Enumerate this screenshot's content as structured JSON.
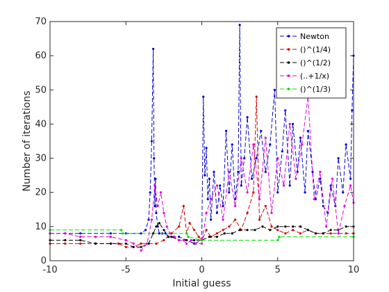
{
  "chart_data": {
    "type": "line",
    "title": "",
    "xlabel": "Initial guess",
    "ylabel": "Number of iterations",
    "xlim": [
      -10,
      10
    ],
    "ylim": [
      0,
      70
    ],
    "xticks": [
      -10,
      -5,
      0,
      5,
      10
    ],
    "yticks": [
      0,
      10,
      20,
      30,
      40,
      50,
      60,
      70
    ],
    "grid": false,
    "legend_position": "top-right",
    "series": [
      {
        "name": "Newton",
        "color": "#0000cc",
        "marker": "dot",
        "x": [
          -10,
          -9,
          -8,
          -6,
          -5,
          -4,
          -3.7,
          -3.5,
          -3.4,
          -3.3,
          -3.2,
          -3.15,
          -3.1,
          -3.05,
          -3,
          -2.9,
          -2.8,
          -2.6,
          -2.4,
          -2.2,
          -2.0,
          -1.5,
          -1.0,
          -0.5,
          0,
          0.1,
          0.2,
          0.3,
          0.4,
          0.5,
          0.6,
          0.8,
          1.0,
          1.2,
          1.4,
          1.6,
          1.8,
          2.0,
          2.2,
          2.4,
          2.5,
          2.6,
          2.8,
          3.0,
          3.3,
          3.6,
          3.9,
          4.2,
          4.5,
          4.8,
          5.0,
          5.3,
          5.5,
          5.8,
          6.0,
          6.3,
          6.5,
          6.8,
          7.0,
          7.3,
          7.5,
          7.8,
          8.0,
          8.3,
          8.5,
          8.8,
          9.0,
          9.3,
          9.5,
          9.8,
          9.9,
          10
        ],
        "y": [
          8,
          8,
          8,
          8,
          8,
          8,
          9,
          12,
          20,
          35,
          62,
          30,
          16,
          24,
          14,
          10,
          8,
          8,
          8,
          7,
          7,
          7,
          6,
          5,
          6,
          48,
          25,
          33,
          18,
          24,
          12,
          26,
          14,
          22,
          16,
          38,
          20,
          34,
          18,
          26,
          69,
          22,
          30,
          42,
          24,
          30,
          38,
          26,
          34,
          50,
          20,
          32,
          44,
          22,
          40,
          26,
          36,
          20,
          38,
          26,
          18,
          24,
          16,
          14,
          22,
          16,
          30,
          20,
          34,
          24,
          44,
          60
        ]
      },
      {
        "name": "()^(1/4)",
        "color": "#cc0000",
        "marker": "dot",
        "x": [
          -10,
          -9,
          -8,
          -7,
          -6,
          -5.5,
          -5,
          -4.5,
          -4,
          -3.5,
          -3,
          -2.5,
          -2,
          -1.5,
          -1.2,
          -1,
          -0.8,
          -0.5,
          -0.2,
          0,
          0.3,
          0.6,
          1.0,
          1.4,
          1.8,
          2.2,
          2.6,
          3.0,
          3.4,
          3.6,
          3.8,
          4.2,
          4.6,
          5.0,
          5.5,
          6.0,
          6.5,
          7.0,
          7.5,
          8.0,
          8.5,
          9.0,
          9.5,
          10
        ],
        "y": [
          5,
          5,
          5,
          5,
          5,
          5,
          4,
          4,
          5,
          5,
          5,
          6,
          8,
          10,
          16,
          8,
          11,
          9,
          7,
          6,
          9,
          7,
          8,
          9,
          10,
          12,
          9,
          14,
          20,
          48,
          12,
          16,
          10,
          9,
          8,
          9,
          8,
          9,
          8,
          8,
          8,
          8,
          8,
          8
        ]
      },
      {
        "name": "()^(1/2)",
        "color": "#000000",
        "marker": "dot",
        "x": [
          -10,
          -9,
          -8,
          -7,
          -6,
          -5,
          -4.5,
          -4,
          -3.5,
          -3.2,
          -3,
          -2.8,
          -2.5,
          -2.2,
          -2,
          -1.5,
          -1,
          -0.5,
          0,
          0.5,
          1.0,
          1.5,
          2.0,
          2.5,
          3.0,
          3.5,
          4.0,
          4.5,
          5.0,
          5.5,
          6.0,
          6.5,
          7.0,
          7.5,
          8.0,
          8.5,
          9.0,
          9.5,
          10
        ],
        "y": [
          6,
          6,
          6,
          5,
          5,
          5,
          4,
          4,
          5,
          8,
          10,
          11,
          9,
          7,
          7,
          6,
          6,
          6,
          6,
          7,
          7,
          8,
          8,
          9,
          9,
          9,
          10,
          9,
          10,
          10,
          10,
          10,
          9,
          8,
          8,
          9,
          9,
          10,
          10
        ]
      },
      {
        "name": "(..+1/x)",
        "color": "#e000e0",
        "marker": "dot",
        "x": [
          -10,
          -9,
          -8,
          -7,
          -6,
          -5,
          -4.5,
          -4,
          -3.6,
          -3.3,
          -3.1,
          -2.9,
          -2.7,
          -2.5,
          -2.3,
          -2.1,
          -1.8,
          -1.5,
          -1.2,
          -1,
          -0.7,
          -0.4,
          0,
          0.3,
          0.6,
          1.0,
          1.4,
          1.8,
          2.2,
          2.6,
          3.0,
          3.4,
          3.8,
          4.2,
          4.6,
          5.0,
          5.4,
          5.8,
          6.2,
          6.6,
          7.0,
          7.4,
          7.8,
          8.2,
          8.6,
          9.0,
          9.4,
          9.8,
          10
        ],
        "y": [
          8,
          8,
          7,
          7,
          7,
          6,
          5,
          3,
          5,
          12,
          22,
          16,
          20,
          14,
          10,
          8,
          7,
          6,
          6,
          5,
          6,
          5,
          5,
          14,
          18,
          22,
          12,
          26,
          16,
          30,
          20,
          34,
          18,
          36,
          14,
          30,
          22,
          40,
          24,
          34,
          48,
          18,
          26,
          10,
          24,
          8,
          16,
          22,
          17
        ]
      },
      {
        "name": "()^(1/3)",
        "color": "#00e000",
        "marker": "dot",
        "x": [
          -10,
          -5.3,
          -5.2,
          -1,
          -0.9,
          0,
          5,
          5.1,
          10
        ],
        "y": [
          9,
          9,
          8,
          8,
          7,
          6,
          6,
          7,
          7
        ]
      }
    ]
  }
}
